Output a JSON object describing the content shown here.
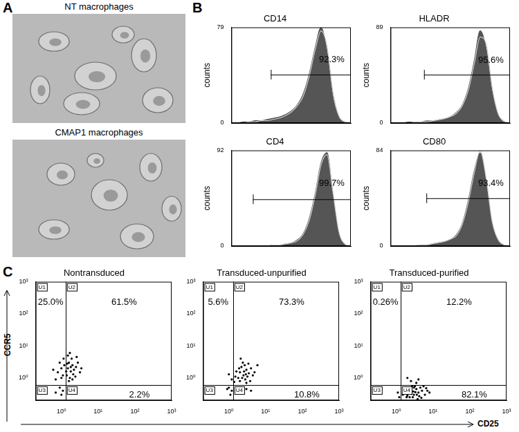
{
  "panels": {
    "A": {
      "letter": "A",
      "micrographs": [
        {
          "title": "NT macrophages"
        },
        {
          "title": "CMAP1 macrophages"
        }
      ]
    },
    "B": {
      "letter": "B"
    },
    "C": {
      "letter": "C",
      "x_label": "CD25",
      "y_label": "CCR5"
    }
  },
  "chart_data": [
    {
      "type": "area",
      "title": "CD14",
      "y_label": "counts",
      "x": [
        0,
        5,
        10,
        15,
        20,
        25,
        30,
        35,
        40,
        45,
        50,
        55,
        60,
        65,
        70,
        75,
        80,
        85,
        90,
        95,
        100
      ],
      "series": [
        {
          "type": "area",
          "color": "#555555",
          "values": [
            0,
            0,
            1,
            1,
            2,
            2,
            3,
            4,
            5,
            7,
            10,
            15,
            24,
            40,
            62,
            79,
            60,
            22,
            5,
            1,
            0
          ]
        },
        {
          "type": "line",
          "color": "#d0d0d0",
          "values": [
            0,
            0,
            0,
            1,
            1,
            2,
            2,
            3,
            4,
            6,
            9,
            14,
            22,
            38,
            60,
            76,
            64,
            26,
            6,
            1,
            0
          ]
        }
      ],
      "xlim": [
        0,
        100
      ],
      "ylim": [
        0,
        79
      ],
      "yticks": [
        0,
        79
      ],
      "grid": false,
      "tick_labels": "y",
      "gate": {
        "from": 33,
        "to": 100,
        "level": 40
      },
      "annotation": {
        "text": "92.3%",
        "x": 84,
        "y": 52
      }
    },
    {
      "type": "area",
      "title": "HLADR",
      "y_label": "counts",
      "x": [
        0,
        5,
        10,
        15,
        20,
        25,
        30,
        35,
        40,
        45,
        50,
        55,
        60,
        65,
        70,
        75,
        80,
        85,
        90,
        95,
        100
      ],
      "series": [
        {
          "type": "area",
          "color": "#555555",
          "values": [
            0,
            0,
            0,
            1,
            1,
            1,
            2,
            2,
            3,
            4,
            6,
            10,
            17,
            32,
            58,
            86,
            70,
            30,
            8,
            1,
            0
          ]
        },
        {
          "type": "line",
          "color": "#d0d0d0",
          "values": [
            0,
            0,
            0,
            0,
            1,
            1,
            1,
            2,
            3,
            4,
            6,
            9,
            16,
            30,
            55,
            80,
            74,
            34,
            9,
            2,
            0
          ]
        }
      ],
      "xlim": [
        0,
        100
      ],
      "ylim": [
        0,
        89
      ],
      "yticks": [
        0,
        89
      ],
      "grid": false,
      "tick_labels": "y",
      "gate": {
        "from": 28,
        "to": 100,
        "level": 45
      },
      "annotation": {
        "text": "95.6%",
        "x": 84,
        "y": 58
      }
    },
    {
      "type": "area",
      "title": "CD4",
      "y_label": "counts",
      "x": [
        0,
        5,
        10,
        15,
        20,
        25,
        30,
        35,
        40,
        45,
        50,
        55,
        60,
        65,
        70,
        75,
        80,
        85,
        90,
        95,
        100
      ],
      "series": [
        {
          "type": "area",
          "color": "#555555",
          "values": [
            0,
            0,
            0,
            0,
            0,
            0,
            0,
            1,
            1,
            2,
            3,
            6,
            12,
            26,
            50,
            80,
            90,
            50,
            12,
            2,
            0
          ]
        },
        {
          "type": "line",
          "color": "#d0d0d0",
          "values": [
            0,
            0,
            0,
            0,
            0,
            0,
            0,
            1,
            1,
            2,
            3,
            5,
            11,
            24,
            48,
            78,
            88,
            52,
            14,
            2,
            0
          ]
        }
      ],
      "xlim": [
        0,
        100
      ],
      "ylim": [
        0,
        92
      ],
      "yticks": [
        0,
        92
      ],
      "grid": false,
      "tick_labels": "y",
      "gate": {
        "from": 18,
        "to": 100,
        "level": 45
      },
      "annotation": {
        "text": "99.7%",
        "x": 84,
        "y": 60
      }
    },
    {
      "type": "area",
      "title": "CD80",
      "y_label": "counts",
      "x": [
        0,
        5,
        10,
        15,
        20,
        25,
        30,
        35,
        40,
        45,
        50,
        55,
        60,
        65,
        70,
        75,
        80,
        85,
        90,
        95,
        100
      ],
      "series": [
        {
          "type": "area",
          "color": "#555555",
          "values": [
            0,
            0,
            0,
            0,
            0,
            1,
            1,
            2,
            3,
            4,
            6,
            10,
            20,
            40,
            66,
            82,
            58,
            20,
            5,
            1,
            0
          ]
        },
        {
          "type": "line",
          "color": "#d0d0d0",
          "values": [
            0,
            0,
            0,
            0,
            0,
            1,
            1,
            2,
            3,
            4,
            6,
            9,
            19,
            38,
            64,
            84,
            60,
            22,
            6,
            1,
            0
          ]
        }
      ],
      "xlim": [
        0,
        100
      ],
      "ylim": [
        0,
        84
      ],
      "yticks": [
        0,
        84
      ],
      "grid": false,
      "tick_labels": "y",
      "gate": {
        "from": 30,
        "to": 100,
        "level": 42
      },
      "annotation": {
        "text": "93.4%",
        "x": 84,
        "y": 55
      }
    },
    {
      "type": "scatter",
      "title": "Nontransduced",
      "log": true,
      "grid": false,
      "xlim": [
        0.2,
        1000
      ],
      "ylim": [
        0.2,
        1000
      ],
      "xticks": [
        {
          "value": 1,
          "label": "10⁰"
        },
        {
          "value": 10,
          "label": "10¹"
        },
        {
          "value": 100,
          "label": "10²"
        },
        {
          "value": 1000,
          "label": "10³"
        }
      ],
      "yticks": [
        {
          "value": 1,
          "label": "10⁰"
        },
        {
          "value": 10,
          "label": "10¹"
        },
        {
          "value": 100,
          "label": "10²"
        },
        {
          "value": 1000,
          "label": "10³"
        }
      ],
      "series": [
        {
          "color": "#000000",
          "marker": "dot",
          "x": [
            0.8,
            1.0,
            1.1,
            0.9,
            1.2,
            0.7,
            1.0,
            1.15,
            0.6,
            1.5,
            1.8,
            2.0,
            1.6,
            2.2,
            1.4,
            1.7,
            2.5,
            1.9,
            1.5,
            2.8,
            1.6,
            2.1,
            3.2,
            1.45,
            2.4,
            1.8,
            2.0,
            1.35,
            2.6,
            1.7,
            3.5,
            0.9,
            1.1,
            0.7,
            1.0,
            1.6
          ],
          "y": [
            1.5,
            2.0,
            1.2,
            3.0,
            2.5,
            0.9,
            1.0,
            4.0,
            1.8,
            2.0,
            1.6,
            2.5,
            3.0,
            1.8,
            1.2,
            1.0,
            2.2,
            4.0,
            5.0,
            3.0,
            0.8,
            1.3,
            1.5,
            2.8,
            1.1,
            2.2,
            0.9,
            1.6,
            4.5,
            6.0,
            2.0,
            0.5,
            0.4,
            0.35,
            0.3,
            0.5
          ]
        }
      ],
      "gates": {
        "x": 1.3,
        "y": 0.6
      },
      "quadrants": [
        {
          "name": "U1",
          "percent": "25.0%"
        },
        {
          "name": "U2",
          "percent": "61.5%"
        },
        {
          "name": "U3"
        },
        {
          "name": "U4",
          "percent": "2.2%"
        }
      ]
    },
    {
      "type": "scatter",
      "title": "Transduced-unpurified",
      "log": true,
      "grid": false,
      "xlim": [
        0.2,
        1000
      ],
      "ylim": [
        0.2,
        1000
      ],
      "xticks": [
        {
          "value": 1,
          "label": "10⁰"
        },
        {
          "value": 10,
          "label": "10¹"
        },
        {
          "value": 100,
          "label": "10²"
        },
        {
          "value": 1000,
          "label": "10³"
        }
      ],
      "yticks": [
        {
          "value": 1,
          "label": "10⁰"
        },
        {
          "value": 10,
          "label": "10¹"
        },
        {
          "value": 100,
          "label": "10²"
        },
        {
          "value": 1000,
          "label": "10³"
        }
      ],
      "series": [
        {
          "color": "#000000",
          "marker": "dot",
          "x": [
            1.0,
            1.2,
            2.0,
            2.5,
            3.0,
            2.2,
            1.8,
            3.5,
            2.8,
            4.0,
            2.4,
            1.6,
            3.2,
            2.0,
            5.0,
            2.7,
            1.5,
            3.8,
            2.3,
            4.5,
            1.9,
            3.0,
            2.6,
            6.0,
            2.1,
            1.4,
            3.4,
            2.9,
            2.5,
            3.0,
            1.8,
            4.0,
            1.0,
            1.2,
            0.9,
            1.1
          ],
          "y": [
            1.3,
            0.9,
            1.5,
            1.2,
            1.8,
            2.2,
            1.0,
            1.4,
            0.9,
            2.0,
            3.0,
            1.6,
            1.1,
            0.8,
            1.5,
            2.5,
            1.1,
            0.8,
            1.0,
            1.2,
            2.0,
            0.7,
            1.6,
            2.5,
            4.0,
            0.75,
            2.8,
            1.3,
            0.5,
            0.45,
            0.5,
            0.4,
            0.5,
            0.4,
            0.45,
            0.3
          ]
        }
      ],
      "gates": {
        "x": 1.3,
        "y": 0.6
      },
      "quadrants": [
        {
          "name": "U1",
          "percent": "5.6%"
        },
        {
          "name": "U2",
          "percent": "73.3%"
        },
        {
          "name": "U3"
        },
        {
          "name": "U4",
          "percent": "10.8%"
        }
      ]
    },
    {
      "type": "scatter",
      "title": "Transduced-purified",
      "log": true,
      "grid": false,
      "xlim": [
        0.2,
        1000
      ],
      "ylim": [
        0.2,
        1000
      ],
      "xticks": [
        {
          "value": 1,
          "label": "10⁰"
        },
        {
          "value": 10,
          "label": "10¹"
        },
        {
          "value": 100,
          "label": "10²"
        },
        {
          "value": 1000,
          "label": "10³"
        }
      ],
      "yticks": [
        {
          "value": 1,
          "label": "10⁰"
        },
        {
          "value": 10,
          "label": "10¹"
        },
        {
          "value": 100,
          "label": "10²"
        },
        {
          "value": 1000,
          "label": "10³"
        }
      ],
      "series": [
        {
          "color": "#000000",
          "marker": "dot",
          "x": [
            2.5,
            3.5,
            2.0,
            4.0,
            2.5,
            3.0,
            3.5,
            2.2,
            4.0,
            5.0,
            2.8,
            3.2,
            1.8,
            6.0,
            2.0,
            4.5,
            3.8,
            2.6,
            7.0,
            1.6,
            3.0,
            2.3,
            5.5,
            4.2,
            2.9,
            1.5,
            3.6,
            8.0,
            2.1,
            4.8,
            2.7,
            3.3,
            6.5,
            1.9,
            1.1,
            1.2
          ],
          "y": [
            0.8,
            0.7,
            1.0,
            0.9,
            0.4,
            0.3,
            0.45,
            0.5,
            0.35,
            0.4,
            0.25,
            0.55,
            0.35,
            0.3,
            0.28,
            0.5,
            0.22,
            0.32,
            0.4,
            0.45,
            0.5,
            0.25,
            0.55,
            0.27,
            0.38,
            0.3,
            0.3,
            0.35,
            0.42,
            0.24,
            0.56,
            0.36,
            0.48,
            0.25,
            0.35,
            0.25
          ]
        }
      ],
      "gates": {
        "x": 1.3,
        "y": 0.6
      },
      "quadrants": [
        {
          "name": "U1",
          "percent": "0.26%"
        },
        {
          "name": "U2",
          "percent": "12.2%"
        },
        {
          "name": "U3"
        },
        {
          "name": "U4",
          "percent": "82.1%"
        }
      ]
    }
  ]
}
